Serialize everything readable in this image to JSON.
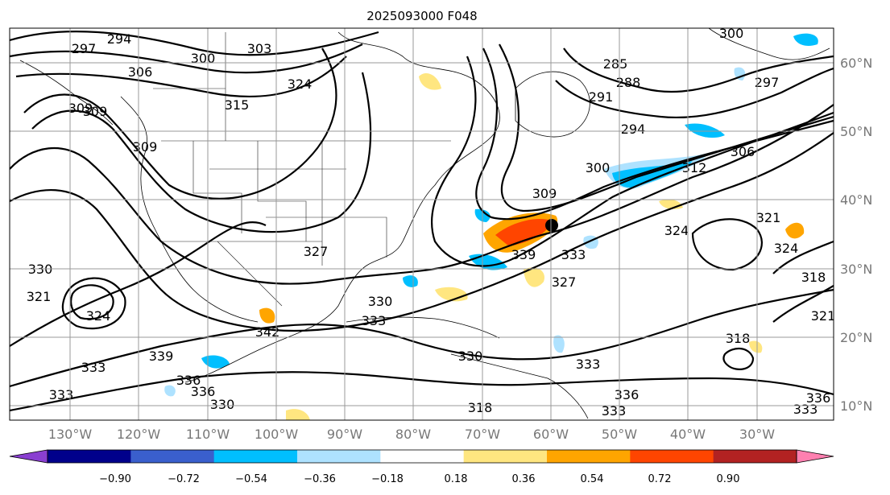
{
  "title": "2025093000 F048",
  "lon_labels": [
    "130°W",
    "120°W",
    "110°W",
    "100°W",
    "90°W",
    "80°W",
    "70°W",
    "60°W",
    "50°W",
    "40°W",
    "30°W"
  ],
  "lat_labels": [
    "60°N",
    "50°N",
    "40°N",
    "30°N",
    "20°N",
    "10°N"
  ],
  "colorbar": {
    "ticks": [
      "−0.90",
      "−0.72",
      "−0.54",
      "−0.36",
      "−0.18",
      "0.18",
      "0.36",
      "0.54",
      "0.72",
      "0.90"
    ],
    "colors": [
      "#8a3fd1",
      "#00008b",
      "#3a5fcd",
      "#00bfff",
      "#aee2ff",
      "#ffffff",
      "#ffe680",
      "#ffa500",
      "#ff4500",
      "#b22222",
      "#ff80b0"
    ]
  },
  "contour_labels": [
    "294",
    "297",
    "300",
    "303",
    "306",
    "309",
    "315",
    "324",
    "300",
    "285",
    "288",
    "291",
    "297",
    "294",
    "300",
    "306",
    "312",
    "309",
    "321",
    "324",
    "324",
    "318",
    "321",
    "339",
    "333",
    "327",
    "330",
    "333",
    "330",
    "333",
    "336",
    "333",
    "336",
    "330",
    "318",
    "327",
    "321",
    "330",
    "324",
    "339",
    "336",
    "333",
    "333",
    "309",
    "318",
    "342",
    "336",
    "333",
    "309"
  ],
  "colors": {
    "shade_blue": "#00bfff",
    "shade_lightblue": "#aee2ff",
    "shade_yellow": "#ffe680",
    "shade_orange": "#ffa500",
    "shade_red": "#ff4500"
  }
}
